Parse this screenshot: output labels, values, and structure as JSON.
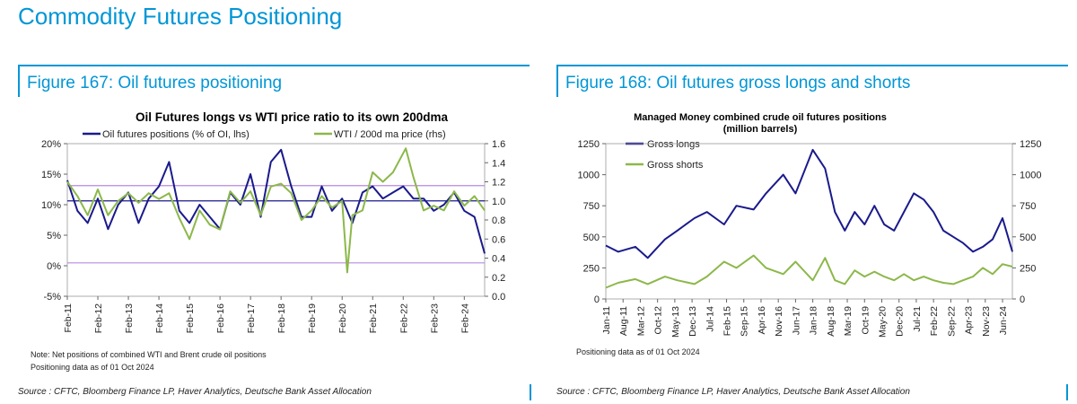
{
  "page": {
    "title": "Commodity Futures Positioning"
  },
  "colors": {
    "accent": "#0096d6",
    "navy": "#1a1a8c",
    "green": "#8cb84a",
    "ref_line": "#b58ae0"
  },
  "fig167": {
    "header": "Figure 167: Oil futures positioning",
    "note": "Note: Net positions of combined WTI and Brent crude oil positions",
    "asof": "Positioning data as of 01 Oct 2024",
    "source": "Source : CFTC, Bloomberg Finance LP, Haver Analytics, Deutsche Bank Asset Allocation"
  },
  "fig168": {
    "header": "Figure 168: Oil futures gross longs and shorts",
    "asof": "Positioning data as of 01 Oct 2024",
    "source": "Source : CFTC, Bloomberg Finance LP, Haver Analytics, Deutsche Bank Asset Allocation"
  },
  "chart_data": [
    {
      "type": "line",
      "title": "Oil Futures longs vs WTI price ratio to its own 200dma",
      "legend_placement": "top",
      "grid": false,
      "x_range": [
        "2011-02",
        "2024-10"
      ],
      "x_tick_labels": [
        "Feb-11",
        "Feb-12",
        "Feb-13",
        "Feb-14",
        "Feb-15",
        "Feb-16",
        "Feb-17",
        "Feb-18",
        "Feb-19",
        "Feb-20",
        "Feb-21",
        "Feb-22",
        "Feb-23",
        "Feb-24"
      ],
      "y_left": {
        "min": -5,
        "max": 20,
        "ticks": [
          "-5%",
          "0%",
          "5%",
          "10%",
          "15%",
          "20%"
        ]
      },
      "y_right": {
        "min": 0.0,
        "max": 1.6,
        "ticks": [
          "0.0",
          "0.2",
          "0.4",
          "0.6",
          "0.8",
          "1.0",
          "1.2",
          "1.4",
          "1.6"
        ]
      },
      "reference_lines": [
        {
          "axis": "right",
          "value": 1.0,
          "color": "#1a1a8c"
        },
        {
          "axis": "right",
          "value": 1.16,
          "color": "#b58ae0"
        },
        {
          "axis": "right",
          "value": 0.35,
          "color": "#b58ae0"
        }
      ],
      "series": [
        {
          "name": "Oil futures positions (% of OI, lhs)",
          "axis": "left",
          "color": "#1a1a8c",
          "x": [
            "2011-02",
            "2011-06",
            "2011-10",
            "2012-02",
            "2012-06",
            "2012-10",
            "2013-02",
            "2013-06",
            "2013-10",
            "2014-02",
            "2014-06",
            "2014-10",
            "2015-02",
            "2015-06",
            "2015-10",
            "2016-02",
            "2016-06",
            "2016-10",
            "2017-02",
            "2017-06",
            "2017-10",
            "2018-02",
            "2018-06",
            "2018-10",
            "2019-02",
            "2019-06",
            "2019-10",
            "2020-02",
            "2020-06",
            "2020-10",
            "2021-02",
            "2021-06",
            "2021-10",
            "2022-02",
            "2022-06",
            "2022-10",
            "2023-02",
            "2023-06",
            "2023-10",
            "2024-02",
            "2024-06",
            "2024-08",
            "2024-10"
          ],
          "y": [
            14,
            9,
            7,
            11,
            6,
            10,
            12,
            7,
            11,
            13,
            17,
            9,
            7,
            10,
            8,
            6,
            12,
            10,
            15,
            8,
            17,
            19,
            13,
            8,
            8,
            13,
            9,
            11,
            7,
            12,
            13,
            11,
            12,
            13,
            11,
            11,
            9,
            10,
            12,
            9,
            8,
            5,
            2
          ]
        },
        {
          "name": "WTI / 200d ma price (rhs)",
          "axis": "right",
          "color": "#8cb84a",
          "x": [
            "2011-02",
            "2011-06",
            "2011-10",
            "2012-02",
            "2012-06",
            "2012-10",
            "2013-02",
            "2013-06",
            "2013-10",
            "2014-02",
            "2014-06",
            "2014-10",
            "2015-02",
            "2015-06",
            "2015-10",
            "2016-02",
            "2016-06",
            "2016-10",
            "2017-02",
            "2017-06",
            "2017-10",
            "2018-02",
            "2018-06",
            "2018-10",
            "2019-02",
            "2019-06",
            "2019-10",
            "2020-02",
            "2020-04",
            "2020-06",
            "2020-10",
            "2021-02",
            "2021-06",
            "2021-10",
            "2022-03",
            "2022-06",
            "2022-10",
            "2023-02",
            "2023-06",
            "2023-10",
            "2024-02",
            "2024-06",
            "2024-10"
          ],
          "y": [
            1.2,
            1.05,
            0.85,
            1.12,
            0.85,
            1.0,
            1.08,
            0.98,
            1.08,
            1.02,
            1.08,
            0.82,
            0.6,
            0.9,
            0.75,
            0.7,
            1.1,
            0.98,
            1.1,
            0.85,
            1.15,
            1.18,
            1.08,
            0.8,
            0.9,
            1.05,
            0.93,
            1.0,
            0.25,
            0.85,
            0.9,
            1.3,
            1.2,
            1.3,
            1.55,
            1.25,
            0.9,
            0.95,
            0.9,
            1.1,
            0.95,
            1.05,
            0.9
          ]
        }
      ]
    },
    {
      "type": "line",
      "title": "Managed Money combined crude oil futures positions",
      "subtitle": "(million barrels)",
      "legend_placement": "top-left",
      "grid": false,
      "x_range": [
        "2011-01",
        "2024-10"
      ],
      "x_tick_labels": [
        "Jan-11",
        "Aug-11",
        "Mar-12",
        "Oct-12",
        "May-13",
        "Dec-13",
        "Jul-14",
        "Feb-15",
        "Sep-15",
        "Apr-16",
        "Nov-16",
        "Jun-17",
        "Jan-18",
        "Aug-18",
        "Mar-19",
        "Oct-19",
        "May-20",
        "Dec-20",
        "Jul-21",
        "Feb-22",
        "Sep-22",
        "Apr-23",
        "Nov-23",
        "Jun-24"
      ],
      "y_left": {
        "min": 0,
        "max": 1250,
        "ticks": [
          "0",
          "250",
          "500",
          "750",
          "1000",
          "1250"
        ]
      },
      "y_right": {
        "min": 0,
        "max": 1250,
        "ticks": [
          "0",
          "250",
          "500",
          "750",
          "1000",
          "1250"
        ]
      },
      "series": [
        {
          "name": "Gross longs",
          "axis": "left",
          "color": "#1a1a8c",
          "x": [
            "2011-01",
            "2011-06",
            "2012-01",
            "2012-06",
            "2013-01",
            "2013-06",
            "2014-01",
            "2014-06",
            "2015-01",
            "2015-06",
            "2016-01",
            "2016-06",
            "2017-01",
            "2017-06",
            "2018-01",
            "2018-06",
            "2018-10",
            "2019-02",
            "2019-06",
            "2019-10",
            "2020-02",
            "2020-06",
            "2020-10",
            "2021-02",
            "2021-06",
            "2021-10",
            "2022-02",
            "2022-06",
            "2022-10",
            "2023-02",
            "2023-06",
            "2023-10",
            "2024-02",
            "2024-06",
            "2024-10"
          ],
          "y": [
            430,
            380,
            420,
            330,
            480,
            550,
            650,
            700,
            600,
            750,
            720,
            850,
            1000,
            850,
            1200,
            1050,
            700,
            550,
            700,
            600,
            750,
            600,
            550,
            700,
            850,
            800,
            700,
            550,
            500,
            450,
            380,
            420,
            480,
            650,
            380
          ]
        },
        {
          "name": "Gross shorts",
          "axis": "left",
          "color": "#8cb84a",
          "x": [
            "2011-01",
            "2011-06",
            "2012-01",
            "2012-06",
            "2013-01",
            "2013-06",
            "2014-01",
            "2014-06",
            "2015-01",
            "2015-06",
            "2016-01",
            "2016-06",
            "2017-01",
            "2017-06",
            "2018-01",
            "2018-06",
            "2018-10",
            "2019-02",
            "2019-06",
            "2019-10",
            "2020-02",
            "2020-06",
            "2020-10",
            "2021-02",
            "2021-06",
            "2021-10",
            "2022-02",
            "2022-06",
            "2022-10",
            "2023-02",
            "2023-06",
            "2023-10",
            "2024-02",
            "2024-06",
            "2024-10"
          ],
          "y": [
            90,
            130,
            160,
            120,
            180,
            150,
            120,
            180,
            300,
            250,
            350,
            250,
            200,
            300,
            150,
            330,
            150,
            120,
            230,
            180,
            220,
            180,
            150,
            200,
            150,
            180,
            150,
            130,
            120,
            150,
            180,
            250,
            200,
            280,
            260
          ]
        }
      ]
    }
  ]
}
